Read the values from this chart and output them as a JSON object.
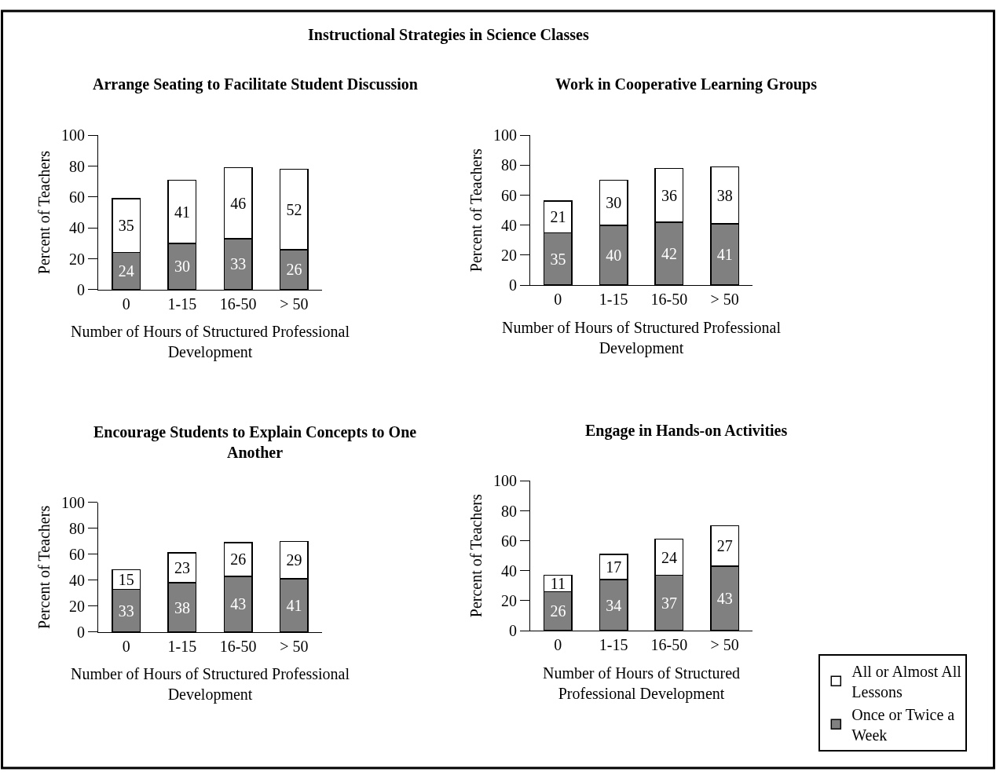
{
  "chart_data": [
    {
      "type": "bar",
      "title": "Arrange Seating to Facilitate Student Discussion",
      "annotations": [
        "Instructional Strategies in Science Classes"
      ],
      "xlabel": "Number of Hours of Structured Professional Development",
      "ylabel": "Percent of Teachers",
      "categories": [
        "0",
        "1-15",
        "16-50",
        "> 50"
      ],
      "stacked": true,
      "data_labels": true,
      "ylim": [
        0,
        100
      ],
      "yticks": [
        0,
        20,
        40,
        60,
        80,
        100
      ],
      "grid": false,
      "legend": "bottom right",
      "series": [
        {
          "name": "Once or Twice a Week",
          "color": "#808080",
          "values": [
            24,
            30,
            33,
            26
          ]
        },
        {
          "name": "All or Almost All Lessons",
          "color": "#ffffff",
          "values": [
            35,
            41,
            46,
            52
          ]
        }
      ]
    },
    {
      "type": "bar",
      "title": "Work in Cooperative Learning Groups",
      "xlabel": "Number of Hours of Structured Professional Development",
      "ylabel": "Percent of Teachers",
      "categories": [
        "0",
        "1-15",
        "16-50",
        "> 50"
      ],
      "stacked": true,
      "data_labels": true,
      "ylim": [
        0,
        100
      ],
      "yticks": [
        0,
        20,
        40,
        60,
        80,
        100
      ],
      "grid": false,
      "legend": false,
      "series": [
        {
          "color": "#808080",
          "values": [
            35,
            40,
            42,
            41
          ]
        },
        {
          "color": "#ffffff",
          "values": [
            21,
            30,
            36,
            38
          ]
        }
      ]
    },
    {
      "type": "bar",
      "title": "Encourage Students to Explain Concepts to One Another",
      "xlabel": "Number of Hours of Structured Professional Development",
      "ylabel": "Percent of Teachers",
      "categories": [
        "0",
        "1-15",
        "16-50",
        "> 50"
      ],
      "stacked": true,
      "data_labels": true,
      "ylim": [
        0,
        100
      ],
      "yticks": [
        0,
        20,
        40,
        60,
        80,
        100
      ],
      "grid": false,
      "legend": false,
      "series": [
        {
          "color": "#808080",
          "values": [
            33,
            38,
            43,
            41
          ]
        },
        {
          "color": "#ffffff",
          "values": [
            15,
            23,
            26,
            29
          ]
        }
      ]
    },
    {
      "type": "bar",
      "title": "Engage in Hands-on Activities",
      "xlabel": "Number of Hours of Structured Professional Development",
      "ylabel": "Percent of Teachers",
      "categories": [
        "0",
        "1-15",
        "16-50",
        "> 50"
      ],
      "stacked": true,
      "data_labels": true,
      "ylim": [
        0,
        100
      ],
      "yticks": [
        0,
        20,
        40,
        60,
        80,
        100
      ],
      "grid": false,
      "legend": false,
      "series": [
        {
          "color": "#808080",
          "values": [
            26,
            34,
            37,
            43
          ]
        },
        {
          "color": "#ffffff",
          "values": [
            11,
            17,
            24,
            27
          ]
        }
      ]
    }
  ]
}
